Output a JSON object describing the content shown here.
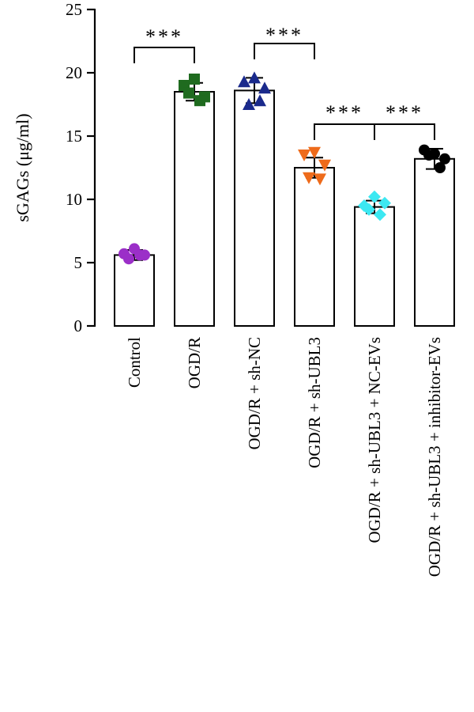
{
  "chart_data": {
    "type": "bar",
    "ylabel": "sGAGs (μg/ml)",
    "ylim": [
      0,
      25
    ],
    "yticks": [
      0,
      5,
      10,
      15,
      20,
      25
    ],
    "grid": false,
    "categories": [
      "Control",
      "OGD/R",
      "OGD/R + sh-NC",
      "OGD/R + sh-UBL3",
      "OGD/R + sh-UBL3 + NC-EVs",
      "OGD/R + sh-UBL3 + inhibitor-EVs"
    ],
    "values": [
      5.6,
      18.5,
      18.6,
      12.5,
      9.4,
      13.2
    ],
    "errors": [
      0.4,
      0.7,
      1.0,
      0.8,
      0.5,
      0.8
    ],
    "points": [
      [
        5.7,
        6.1,
        5.6,
        5.3,
        5.6
      ],
      [
        19.0,
        19.5,
        18.1,
        18.4,
        17.8
      ],
      [
        19.3,
        19.6,
        18.8,
        17.5,
        17.8
      ],
      [
        13.5,
        13.7,
        12.7,
        11.7,
        11.6
      ],
      [
        9.5,
        10.2,
        9.7,
        9.2,
        8.8
      ],
      [
        13.9,
        13.6,
        13.2,
        13.5,
        12.5
      ]
    ],
    "point_colors": [
      "#9b2fc8",
      "#1f6b1f",
      "#1a2a8c",
      "#ee6b1b",
      "#3ce8f2",
      "#000000"
    ],
    "point_markers": [
      "circle",
      "square",
      "triangle-up",
      "triangle-down",
      "diamond",
      "circle"
    ],
    "significance": [
      {
        "from": 0,
        "to": 1,
        "label": "***"
      },
      {
        "from": 2,
        "to": 3,
        "label": "***"
      },
      {
        "from": 3,
        "to": 4,
        "label": "***"
      },
      {
        "from": 4,
        "to": 5,
        "label": "***"
      }
    ]
  }
}
